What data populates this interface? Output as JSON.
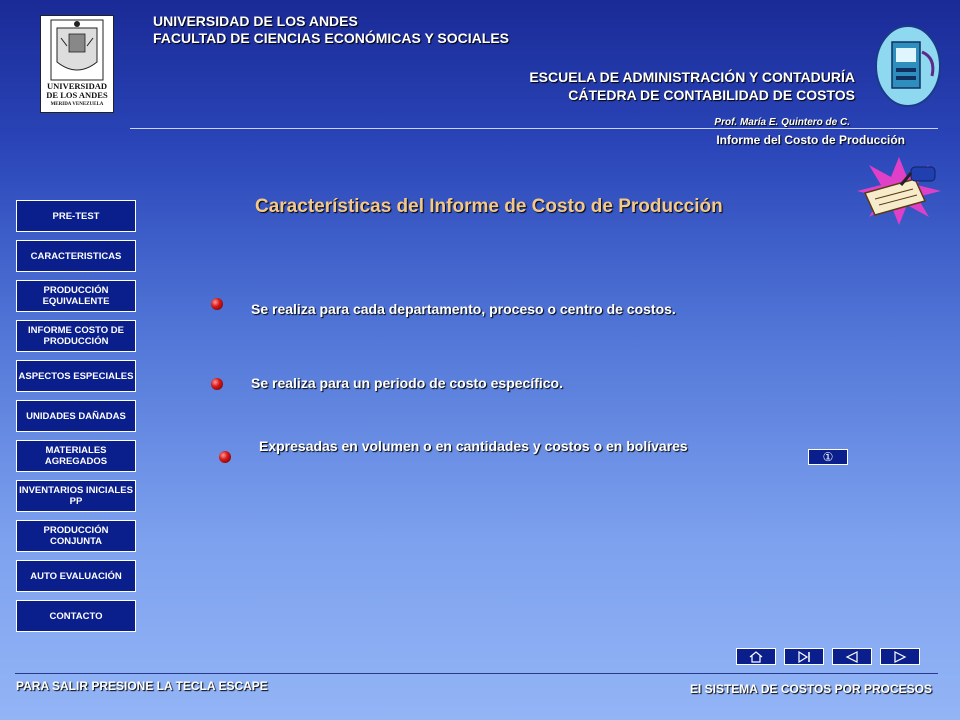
{
  "header": {
    "university_line1": "UNIVERSIDAD DE LOS ANDES",
    "university_line2": "FACULTAD DE CIENCIAS ECONÓMICAS Y SOCIALES",
    "school_line1": "ESCUELA DE ADMINISTRACIÓN Y CONTADURÍA",
    "school_line2": "CÁTEDRA DE CONTABILIDAD DE COSTOS",
    "professor": "Prof. María E. Quintero de C.",
    "topic": "Informe del Costo  de Producción",
    "logo_text1": "UNIVERSIDAD",
    "logo_text2": "DE LOS ANDES",
    "logo_text3": "MERIDA VENEZUELA"
  },
  "main": {
    "title": "Características del Informe de Costo de Producción",
    "items": [
      "Se realiza para cada departamento, proceso  o centro de costos.",
      "Se realiza para un periodo de costo específico.",
      "Expresadas en volumen  o en cantidades y costos o en bolívares"
    ],
    "info_icon": "①"
  },
  "sidebar": {
    "items": [
      {
        "label": "PRE-TEST"
      },
      {
        "label": "CARACTERISTICAS"
      },
      {
        "label": "PRODUCCIÓN EQUIVALENTE"
      },
      {
        "label": "INFORME COSTO DE PRODUCCIÓN"
      },
      {
        "label": "ASPECTOS ESPECIALES"
      },
      {
        "label": "UNIDADES DAÑADAS"
      },
      {
        "label": "MATERIALES AGREGADOS"
      },
      {
        "label": "INVENTARIOS INICIALES PP"
      },
      {
        "label": "PRODUCCIÓN CONJUNTA"
      },
      {
        "label": "AUTO EVALUACIÓN"
      },
      {
        "label": "CONTACTO"
      }
    ]
  },
  "footer": {
    "left": "PARA SALIR  PRESIONE  LA TECLA ESCAPE",
    "right": "El SISTEMA DE COSTOS POR PROCESOS"
  },
  "controls": {
    "icons": [
      "home-icon",
      "end-icon",
      "back-icon",
      "forward-icon"
    ]
  },
  "colors": {
    "title": "#f3c98a",
    "button_bg": "#0a1f8c",
    "bullet": "#d81818"
  }
}
